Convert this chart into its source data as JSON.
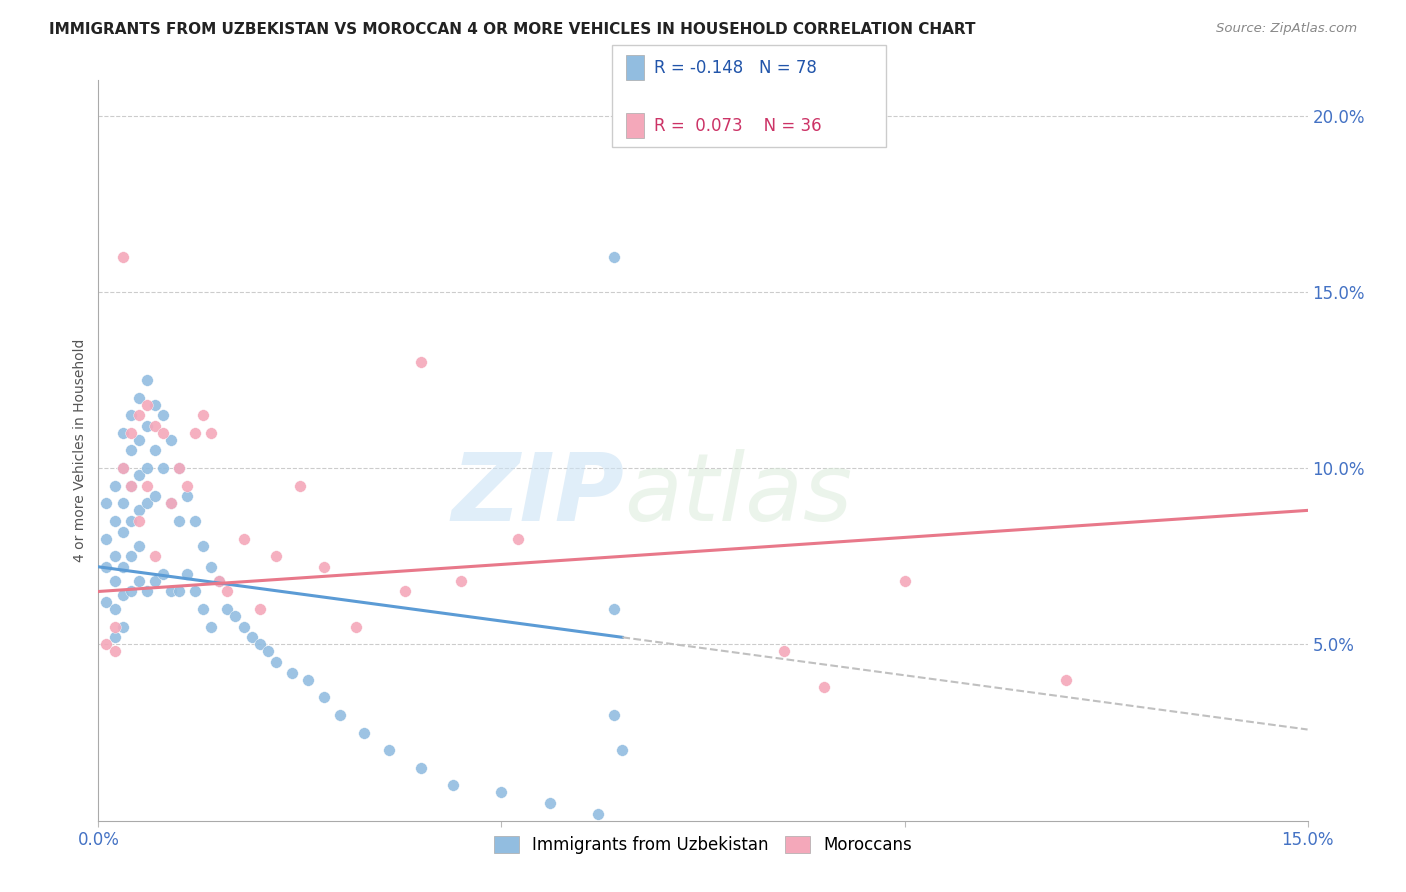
{
  "title": "IMMIGRANTS FROM UZBEKISTAN VS MOROCCAN 4 OR MORE VEHICLES IN HOUSEHOLD CORRELATION CHART",
  "source": "Source: ZipAtlas.com",
  "ylabel": "4 or more Vehicles in Household",
  "legend_label1": "Immigrants from Uzbekistan",
  "legend_label2": "Moroccans",
  "R1": -0.148,
  "N1": 78,
  "R2": 0.073,
  "N2": 36,
  "color1": "#92bde0",
  "color2": "#f4a8ba",
  "trendline1_color": "#5b9bd5",
  "trendline2_color": "#e8788a",
  "trendline_ext_color": "#c0c0c0",
  "watermark_zip": "ZIP",
  "watermark_atlas": "atlas",
  "xlim": [
    0.0,
    0.15
  ],
  "ylim": [
    0.0,
    0.21
  ],
  "xticks": [
    0.0,
    0.15
  ],
  "xtick_labels": [
    "0.0%",
    "15.0%"
  ],
  "yticks_right": [
    0.05,
    0.1,
    0.15,
    0.2
  ],
  "ytick_labels_right": [
    "5.0%",
    "10.0%",
    "15.0%",
    "20.0%"
  ],
  "scatter1_x": [
    0.001,
    0.001,
    0.001,
    0.001,
    0.002,
    0.002,
    0.002,
    0.002,
    0.002,
    0.002,
    0.003,
    0.003,
    0.003,
    0.003,
    0.003,
    0.003,
    0.003,
    0.004,
    0.004,
    0.004,
    0.004,
    0.004,
    0.004,
    0.005,
    0.005,
    0.005,
    0.005,
    0.005,
    0.005,
    0.006,
    0.006,
    0.006,
    0.006,
    0.006,
    0.007,
    0.007,
    0.007,
    0.007,
    0.008,
    0.008,
    0.008,
    0.009,
    0.009,
    0.009,
    0.01,
    0.01,
    0.01,
    0.011,
    0.011,
    0.012,
    0.012,
    0.013,
    0.013,
    0.014,
    0.014,
    0.015,
    0.016,
    0.017,
    0.018,
    0.019,
    0.02,
    0.021,
    0.022,
    0.024,
    0.026,
    0.028,
    0.03,
    0.033,
    0.036,
    0.04,
    0.044,
    0.05,
    0.056,
    0.062,
    0.064,
    0.064,
    0.064,
    0.065
  ],
  "scatter1_y": [
    0.09,
    0.08,
    0.072,
    0.062,
    0.095,
    0.085,
    0.075,
    0.068,
    0.06,
    0.052,
    0.11,
    0.1,
    0.09,
    0.082,
    0.072,
    0.064,
    0.055,
    0.115,
    0.105,
    0.095,
    0.085,
    0.075,
    0.065,
    0.12,
    0.108,
    0.098,
    0.088,
    0.078,
    0.068,
    0.125,
    0.112,
    0.1,
    0.09,
    0.065,
    0.118,
    0.105,
    0.092,
    0.068,
    0.115,
    0.1,
    0.07,
    0.108,
    0.09,
    0.065,
    0.1,
    0.085,
    0.065,
    0.092,
    0.07,
    0.085,
    0.065,
    0.078,
    0.06,
    0.072,
    0.055,
    0.068,
    0.06,
    0.058,
    0.055,
    0.052,
    0.05,
    0.048,
    0.045,
    0.042,
    0.04,
    0.035,
    0.03,
    0.025,
    0.02,
    0.015,
    0.01,
    0.008,
    0.005,
    0.002,
    0.16,
    0.06,
    0.03,
    0.02
  ],
  "scatter2_x": [
    0.001,
    0.002,
    0.002,
    0.003,
    0.003,
    0.004,
    0.004,
    0.005,
    0.005,
    0.006,
    0.006,
    0.007,
    0.007,
    0.008,
    0.009,
    0.01,
    0.011,
    0.012,
    0.013,
    0.014,
    0.015,
    0.016,
    0.018,
    0.02,
    0.022,
    0.025,
    0.028,
    0.032,
    0.038,
    0.04,
    0.045,
    0.052,
    0.085,
    0.09,
    0.1,
    0.12
  ],
  "scatter2_y": [
    0.05,
    0.055,
    0.048,
    0.16,
    0.1,
    0.11,
    0.095,
    0.115,
    0.085,
    0.118,
    0.095,
    0.112,
    0.075,
    0.11,
    0.09,
    0.1,
    0.095,
    0.11,
    0.115,
    0.11,
    0.068,
    0.065,
    0.08,
    0.06,
    0.075,
    0.095,
    0.072,
    0.055,
    0.065,
    0.13,
    0.068,
    0.08,
    0.048,
    0.038,
    0.068,
    0.04
  ],
  "trendline1_x_end": 0.065,
  "trendline1_x_start": 0.0,
  "trendline1_y_start": 0.072,
  "trendline1_y_end": 0.052,
  "trendline2_x_start": 0.0,
  "trendline2_x_end": 0.15,
  "trendline2_y_start": 0.065,
  "trendline2_y_end": 0.088
}
